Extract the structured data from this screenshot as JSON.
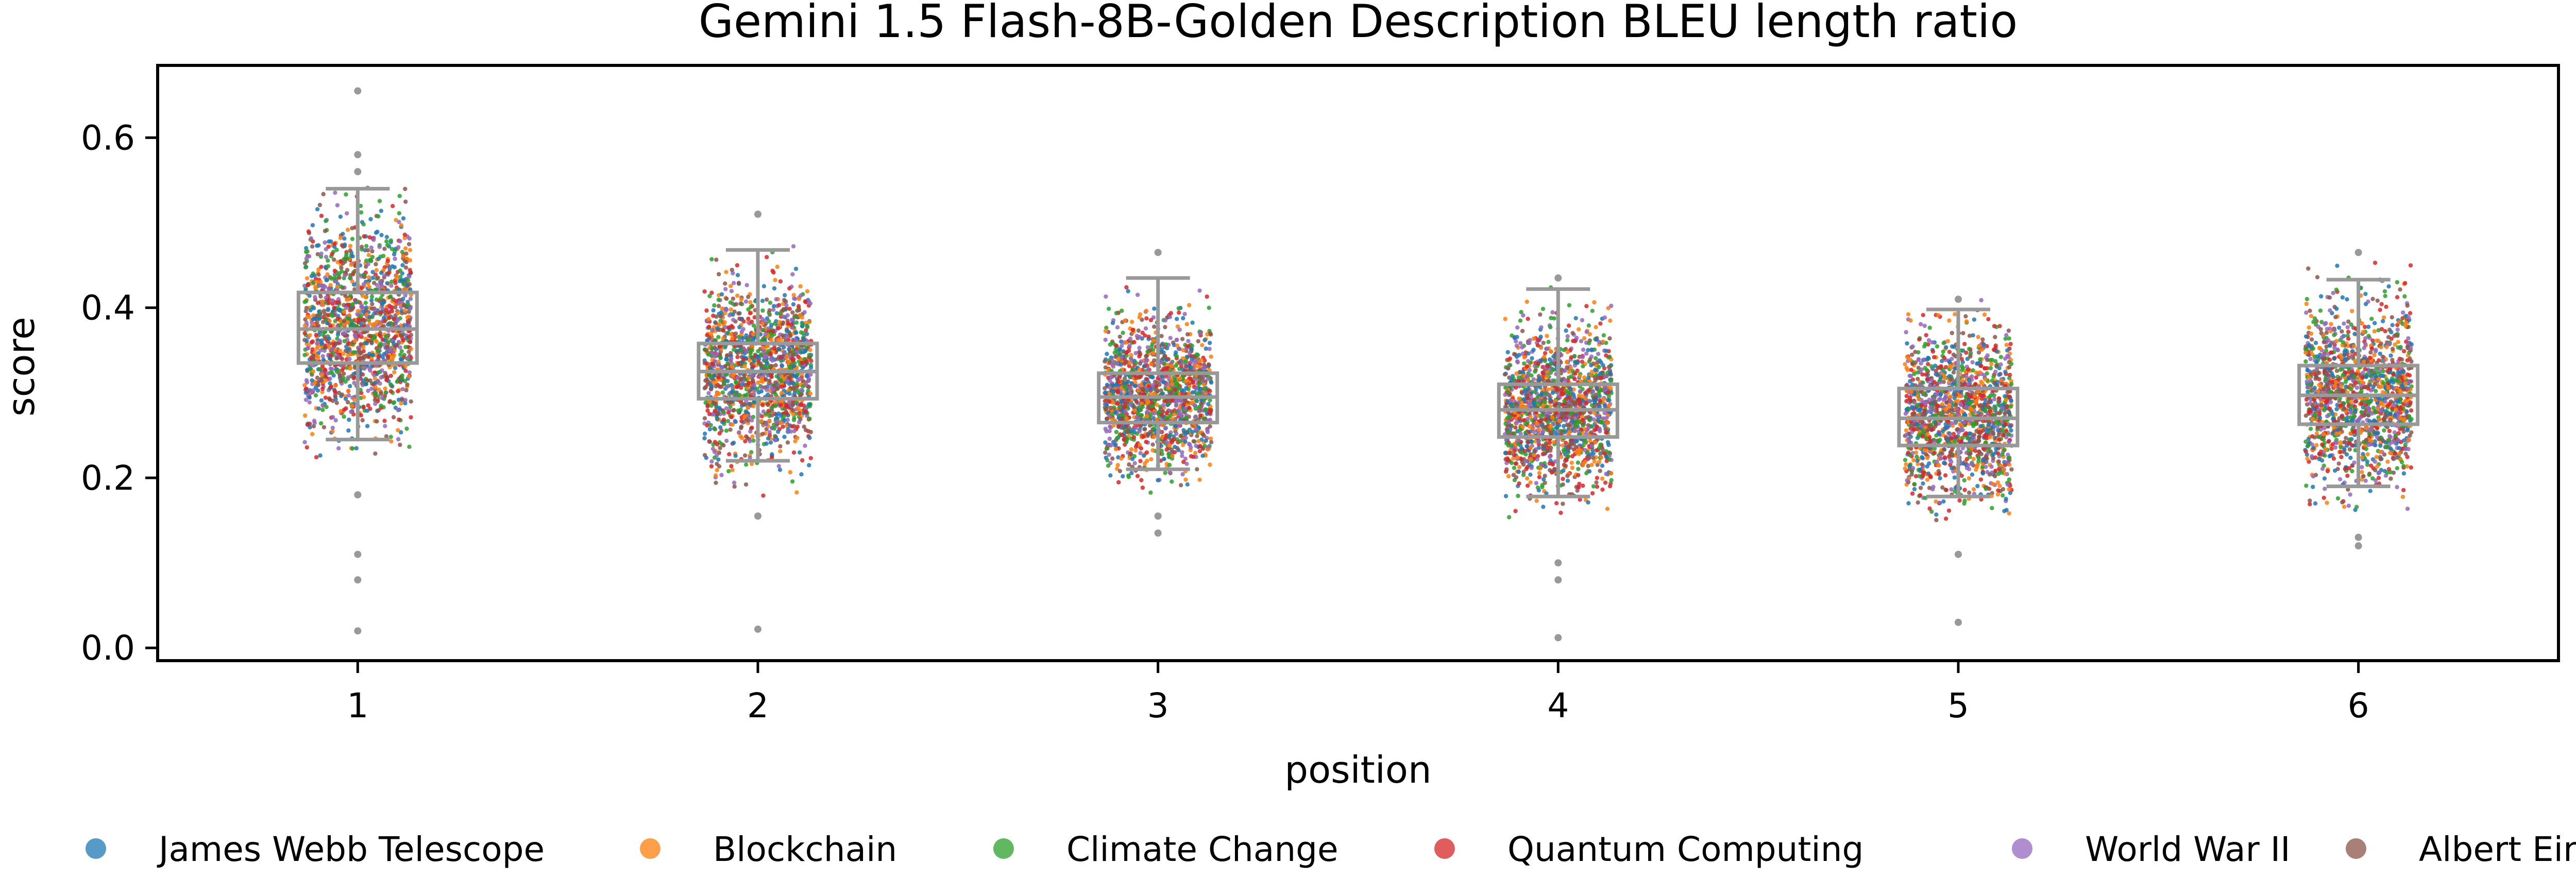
{
  "chart_data": {
    "type": "box-strip",
    "title": "Gemini 1.5 Flash-8B-Golden Description BLEU length ratio",
    "xlabel": "position",
    "ylabel": "score",
    "categories": [
      "1",
      "2",
      "3",
      "4",
      "5",
      "6"
    ],
    "ylim": [
      -0.015,
      0.685
    ],
    "yticks": [
      0.0,
      0.2,
      0.4,
      0.6
    ],
    "ytick_labels": [
      "0.0",
      "0.2",
      "0.4",
      "0.6"
    ],
    "grid": false,
    "legend_position": "bottom",
    "boxes": [
      {
        "position": "1",
        "q1": 0.335,
        "median": 0.375,
        "q3": 0.418,
        "whisker_low": 0.245,
        "whisker_high": 0.54,
        "outliers": [
          0.655,
          0.58,
          0.56,
          0.18,
          0.11,
          0.08,
          0.02
        ],
        "spread_low": 0.22,
        "spread_high": 0.56
      },
      {
        "position": "2",
        "q1": 0.293,
        "median": 0.325,
        "q3": 0.358,
        "whisker_low": 0.22,
        "whisker_high": 0.468,
        "outliers": [
          0.51,
          0.155,
          0.022
        ],
        "spread_low": 0.17,
        "spread_high": 0.5
      },
      {
        "position": "3",
        "q1": 0.265,
        "median": 0.295,
        "q3": 0.323,
        "whisker_low": 0.21,
        "whisker_high": 0.435,
        "outliers": [
          0.465,
          0.155,
          0.135
        ],
        "spread_low": 0.18,
        "spread_high": 0.44
      },
      {
        "position": "4",
        "q1": 0.248,
        "median": 0.28,
        "q3": 0.31,
        "whisker_low": 0.178,
        "whisker_high": 0.422,
        "outliers": [
          0.435,
          0.1,
          0.08,
          0.012
        ],
        "spread_low": 0.15,
        "spread_high": 0.43
      },
      {
        "position": "5",
        "q1": 0.238,
        "median": 0.27,
        "q3": 0.305,
        "whisker_low": 0.178,
        "whisker_high": 0.398,
        "outliers": [
          0.41,
          0.11,
          0.03
        ],
        "spread_low": 0.15,
        "spread_high": 0.41
      },
      {
        "position": "6",
        "q1": 0.263,
        "median": 0.297,
        "q3": 0.332,
        "whisker_low": 0.19,
        "whisker_high": 0.433,
        "outliers": [
          0.465,
          0.13,
          0.12
        ],
        "spread_low": 0.16,
        "spread_high": 0.46
      }
    ],
    "series": [
      {
        "name": "James Webb Telescope",
        "color": "#1f77b4"
      },
      {
        "name": "Blockchain",
        "color": "#ff7f0e"
      },
      {
        "name": "Climate Change",
        "color": "#2ca02c"
      },
      {
        "name": "Quantum Computing",
        "color": "#d62728"
      },
      {
        "name": "World War II",
        "color": "#9467bd"
      },
      {
        "name": "Albert Einstein",
        "color": "#8c564b"
      }
    ],
    "box_color": "#999999"
  }
}
